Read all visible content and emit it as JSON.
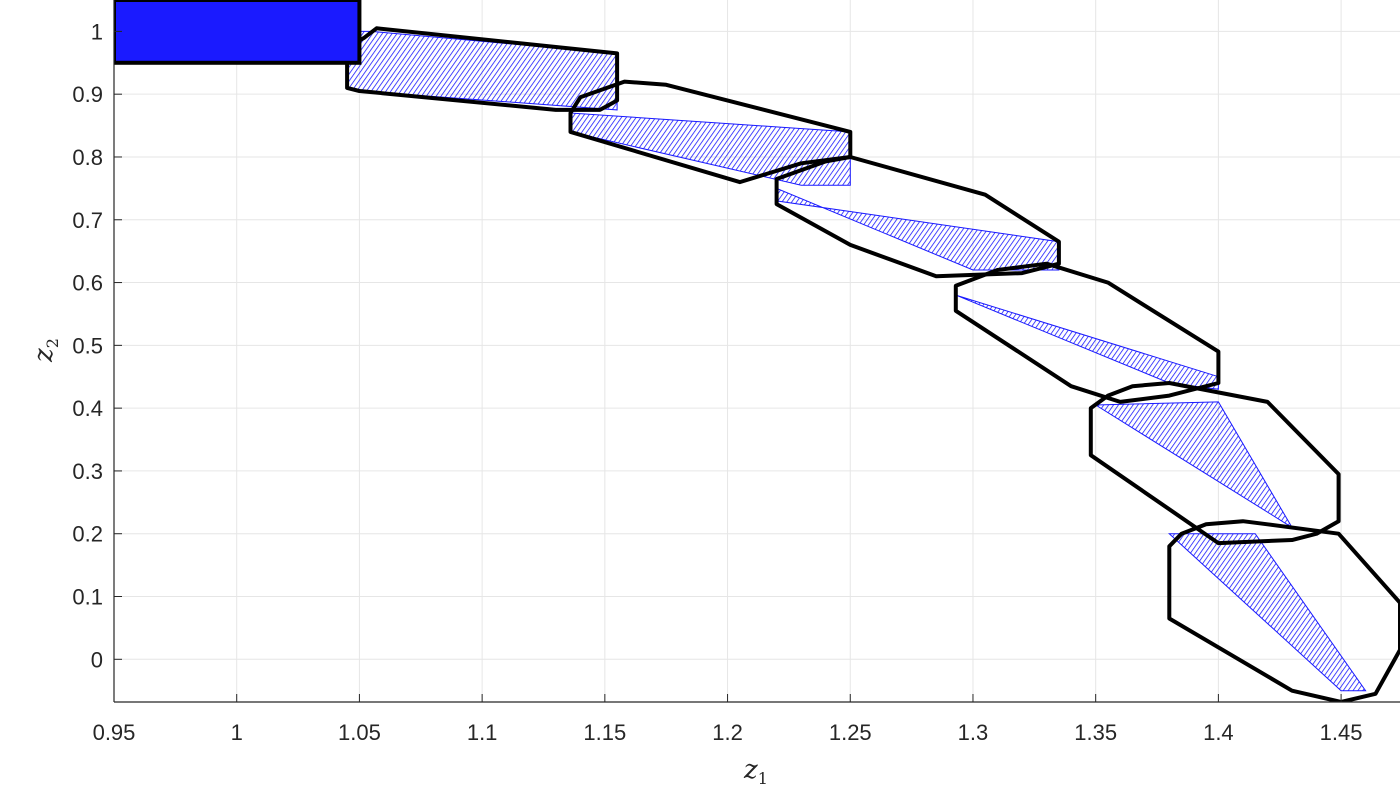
{
  "chart_data": {
    "type": "area",
    "xlabel": "z",
    "xlabel_subscript": "1",
    "ylabel": "z",
    "ylabel_subscript": "2",
    "xlim": [
      0.95,
      1.474
    ],
    "ylim": [
      -0.068,
      1.05
    ],
    "xticks": [
      0.95,
      1,
      1.05,
      1.1,
      1.15,
      1.2,
      1.25,
      1.3,
      1.35,
      1.4,
      1.45
    ],
    "xtick_labels": [
      "0.95",
      "1",
      "1.05",
      "1.1",
      "1.15",
      "1.2",
      "1.25",
      "1.3",
      "1.35",
      "1.4",
      "1.45"
    ],
    "yticks": [
      0,
      0.1,
      0.2,
      0.3,
      0.4,
      0.5,
      0.6,
      0.7,
      0.8,
      0.9,
      1
    ],
    "ytick_labels": [
      "0",
      "0.1",
      "0.2",
      "0.3",
      "0.4",
      "0.5",
      "0.6",
      "0.7",
      "0.8",
      "0.9",
      "1"
    ],
    "grid": true,
    "colors": {
      "fill": "#1a1aff",
      "hatch": "#1a1aff",
      "enclosure": "#000000",
      "grid": "#e6e6e6",
      "axis": "#262626"
    },
    "initial_set": {
      "x": [
        0.95,
        1.05
      ],
      "y": [
        0.95,
        1.05
      ]
    },
    "reach_sets": [
      {
        "polygon": [
          [
            1.045,
            0.91
          ],
          [
            1.045,
            0.97
          ],
          [
            1.05,
            1.0
          ],
          [
            1.055,
            1.0
          ],
          [
            1.155,
            0.965
          ],
          [
            1.155,
            0.875
          ],
          [
            1.05,
            0.905
          ]
        ]
      },
      {
        "polygon": [
          [
            1.136,
            0.84
          ],
          [
            1.136,
            0.87
          ],
          [
            1.25,
            0.84
          ],
          [
            1.25,
            0.755
          ],
          [
            1.23,
            0.755
          ],
          [
            1.136,
            0.84
          ]
        ]
      },
      {
        "polygon": [
          [
            1.22,
            0.73
          ],
          [
            1.22,
            0.75
          ],
          [
            1.3,
            0.62
          ],
          [
            1.335,
            0.62
          ],
          [
            1.335,
            0.665
          ],
          [
            1.22,
            0.73
          ]
        ]
      },
      {
        "polygon": [
          [
            1.293,
            0.58
          ],
          [
            1.4,
            0.45
          ],
          [
            1.4,
            0.43
          ],
          [
            1.38,
            0.44
          ],
          [
            1.293,
            0.58
          ]
        ]
      },
      {
        "polygon": [
          [
            1.35,
            0.405
          ],
          [
            1.43,
            0.21
          ],
          [
            1.4,
            0.41
          ],
          [
            1.35,
            0.405
          ]
        ]
      },
      {
        "polygon": [
          [
            1.38,
            0.2
          ],
          [
            1.45,
            -0.05
          ],
          [
            1.46,
            -0.05
          ],
          [
            1.415,
            0.2
          ],
          [
            1.38,
            0.2
          ]
        ]
      }
    ],
    "enclosures": [
      {
        "polygon": [
          [
            1.045,
            0.91
          ],
          [
            1.045,
            0.975
          ],
          [
            1.052,
            0.99
          ],
          [
            1.057,
            1.005
          ],
          [
            1.155,
            0.965
          ],
          [
            1.155,
            0.89
          ],
          [
            1.148,
            0.875
          ],
          [
            1.13,
            0.875
          ],
          [
            1.05,
            0.905
          ]
        ]
      },
      {
        "polygon": [
          [
            1.136,
            0.84
          ],
          [
            1.136,
            0.87
          ],
          [
            1.14,
            0.895
          ],
          [
            1.158,
            0.92
          ],
          [
            1.175,
            0.915
          ],
          [
            1.25,
            0.84
          ],
          [
            1.25,
            0.8
          ],
          [
            1.23,
            0.79
          ],
          [
            1.205,
            0.76
          ],
          [
            1.136,
            0.84
          ]
        ]
      },
      {
        "polygon": [
          [
            1.22,
            0.725
          ],
          [
            1.22,
            0.765
          ],
          [
            1.24,
            0.793
          ],
          [
            1.25,
            0.8
          ],
          [
            1.305,
            0.74
          ],
          [
            1.335,
            0.665
          ],
          [
            1.335,
            0.63
          ],
          [
            1.32,
            0.615
          ],
          [
            1.285,
            0.61
          ],
          [
            1.25,
            0.66
          ],
          [
            1.22,
            0.725
          ]
        ]
      },
      {
        "polygon": [
          [
            1.293,
            0.555
          ],
          [
            1.293,
            0.595
          ],
          [
            1.31,
            0.62
          ],
          [
            1.33,
            0.63
          ],
          [
            1.355,
            0.6
          ],
          [
            1.4,
            0.49
          ],
          [
            1.4,
            0.44
          ],
          [
            1.38,
            0.42
          ],
          [
            1.36,
            0.41
          ],
          [
            1.34,
            0.435
          ],
          [
            1.293,
            0.555
          ]
        ]
      },
      {
        "polygon": [
          [
            1.348,
            0.325
          ],
          [
            1.348,
            0.4
          ],
          [
            1.355,
            0.42
          ],
          [
            1.365,
            0.435
          ],
          [
            1.38,
            0.44
          ],
          [
            1.42,
            0.41
          ],
          [
            1.449,
            0.295
          ],
          [
            1.449,
            0.22
          ],
          [
            1.44,
            0.2
          ],
          [
            1.43,
            0.19
          ],
          [
            1.4,
            0.185
          ],
          [
            1.348,
            0.325
          ]
        ]
      },
      {
        "polygon": [
          [
            1.38,
            0.065
          ],
          [
            1.38,
            0.18
          ],
          [
            1.385,
            0.2
          ],
          [
            1.395,
            0.215
          ],
          [
            1.41,
            0.22
          ],
          [
            1.42,
            0.215
          ],
          [
            1.449,
            0.2
          ],
          [
            1.474,
            0.09
          ],
          [
            1.474,
            0.015
          ],
          [
            1.464,
            -0.055
          ],
          [
            1.45,
            -0.068
          ],
          [
            1.43,
            -0.05
          ],
          [
            1.38,
            0.065
          ]
        ]
      }
    ]
  }
}
